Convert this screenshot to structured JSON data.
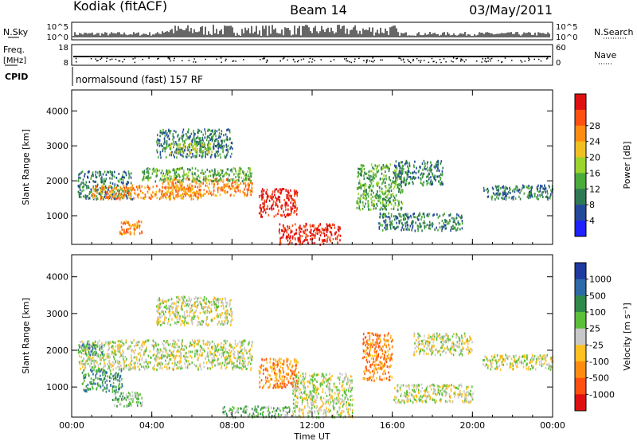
{
  "header": {
    "station": "Kodiak (fitACF)",
    "beam": "Beam 14",
    "date": "03/May/2011"
  },
  "status_strip": {
    "nsky_label": "N.Sky",
    "nsky_ticks": [
      "10^5",
      "10^0"
    ],
    "nsearch_label": "N.Search",
    "nsearch_ticks": [
      "10^5",
      "10^0"
    ],
    "freq_label": "Freq.",
    "freq_unit": "[MHz]",
    "freq_ticks": [
      "18",
      "8"
    ],
    "nave_label": "Nave",
    "nave_ticks": [
      "60",
      "0"
    ],
    "cpid_label": "CPID",
    "cpid_text": "normalsound (fast) 157 RF"
  },
  "colors": {
    "power": [
      "#1e22ff",
      "#24489a",
      "#2f7a55",
      "#4aaa3a",
      "#9ad42c",
      "#f0c020",
      "#ff8c10",
      "#ff5010",
      "#e01010"
    ],
    "velocity": [
      "#1e3aa0",
      "#2d6aa8",
      "#2f8a4a",
      "#5cbf3a",
      "#c8c8c8",
      "#ffc020",
      "#ff8c10",
      "#ff5010",
      "#e01010"
    ]
  },
  "chart_data": [
    {
      "type": "heatmap",
      "name": "Power",
      "ylabel": "Slant Range [km]",
      "xlabel": "",
      "yticks": [
        "1000",
        "2000",
        "3000",
        "4000"
      ],
      "xticks": [
        "00:00",
        "04:00",
        "08:00",
        "12:00",
        "16:00",
        "20:00",
        "00:00"
      ],
      "ylim": [
        180,
        4600
      ],
      "xlim_hours": [
        0,
        24
      ],
      "colorbar_label": "Power [dB]",
      "colorbar_ticks": [
        "4",
        "8",
        "12",
        "16",
        "20",
        "24",
        "28"
      ],
      "regions": [
        {
          "t": [
            0.3,
            3.0
          ],
          "r": [
            1500,
            2300
          ],
          "level": 2
        },
        {
          "t": [
            1.0,
            6.5
          ],
          "r": [
            1500,
            1900
          ],
          "level": 6
        },
        {
          "t": [
            4.5,
            9.0
          ],
          "r": [
            1600,
            2100
          ],
          "level": 6
        },
        {
          "t": [
            3.5,
            9.0
          ],
          "r": [
            2000,
            2400
          ],
          "level": 3
        },
        {
          "t": [
            4.2,
            8.0
          ],
          "r": [
            2700,
            3500
          ],
          "level": 2
        },
        {
          "t": [
            4.6,
            7.0
          ],
          "r": [
            2800,
            3100
          ],
          "level": 4
        },
        {
          "t": [
            2.3,
            3.5
          ],
          "r": [
            500,
            900
          ],
          "level": 6
        },
        {
          "t": [
            9.3,
            11.3
          ],
          "r": [
            1000,
            1800
          ],
          "level": 8
        },
        {
          "t": [
            10.3,
            13.4
          ],
          "r": [
            200,
            800
          ],
          "level": 8
        },
        {
          "t": [
            14.2,
            16.5
          ],
          "r": [
            1200,
            2500
          ],
          "level": 3
        },
        {
          "t": [
            15.3,
            19.5
          ],
          "r": [
            600,
            1100
          ],
          "level": 2
        },
        {
          "t": [
            16.0,
            18.5
          ],
          "r": [
            1900,
            2600
          ],
          "level": 2
        },
        {
          "t": [
            20.5,
            24.0
          ],
          "r": [
            1500,
            1900
          ],
          "level": 2
        }
      ]
    },
    {
      "type": "heatmap",
      "name": "Velocity",
      "ylabel": "Slant Range [km]",
      "xlabel": "Time UT",
      "yticks": [
        "1000",
        "2000",
        "3000",
        "4000"
      ],
      "xticks": [
        "00:00",
        "04:00",
        "08:00",
        "12:00",
        "16:00",
        "20:00",
        "00:00"
      ],
      "ylim": [
        180,
        4600
      ],
      "xlim_hours": [
        0,
        24
      ],
      "colorbar_label": "Velocity [m s⁻¹]",
      "colorbar_ticks": [
        "1000",
        "500",
        "100",
        "25",
        "-25",
        "-100",
        "-500",
        "-1000"
      ],
      "regions": [
        {
          "t": [
            0.3,
            9.0
          ],
          "r": [
            1500,
            2300
          ],
          "level": 4
        },
        {
          "t": [
            4.2,
            8.0
          ],
          "r": [
            2700,
            3500
          ],
          "level": 4
        },
        {
          "t": [
            0.3,
            1.5
          ],
          "r": [
            1900,
            2200
          ],
          "level": 2
        },
        {
          "t": [
            0.5,
            2.5
          ],
          "r": [
            900,
            1500
          ],
          "level": 2
        },
        {
          "t": [
            2.0,
            3.5
          ],
          "r": [
            500,
            900
          ],
          "level": 3
        },
        {
          "t": [
            9.3,
            11.3
          ],
          "r": [
            1000,
            1800
          ],
          "level": 6
        },
        {
          "t": [
            7.5,
            11.0
          ],
          "r": [
            200,
            500
          ],
          "level": 3
        },
        {
          "t": [
            11.0,
            14.0
          ],
          "r": [
            200,
            1400
          ],
          "level": 4
        },
        {
          "t": [
            14.5,
            16.0
          ],
          "r": [
            1200,
            2500
          ],
          "level": 6
        },
        {
          "t": [
            16.0,
            20.0
          ],
          "r": [
            600,
            1100
          ],
          "level": 4
        },
        {
          "t": [
            17.0,
            20.0
          ],
          "r": [
            1900,
            2500
          ],
          "level": 4
        },
        {
          "t": [
            20.5,
            24.0
          ],
          "r": [
            1500,
            1900
          ],
          "level": 4
        }
      ]
    }
  ]
}
